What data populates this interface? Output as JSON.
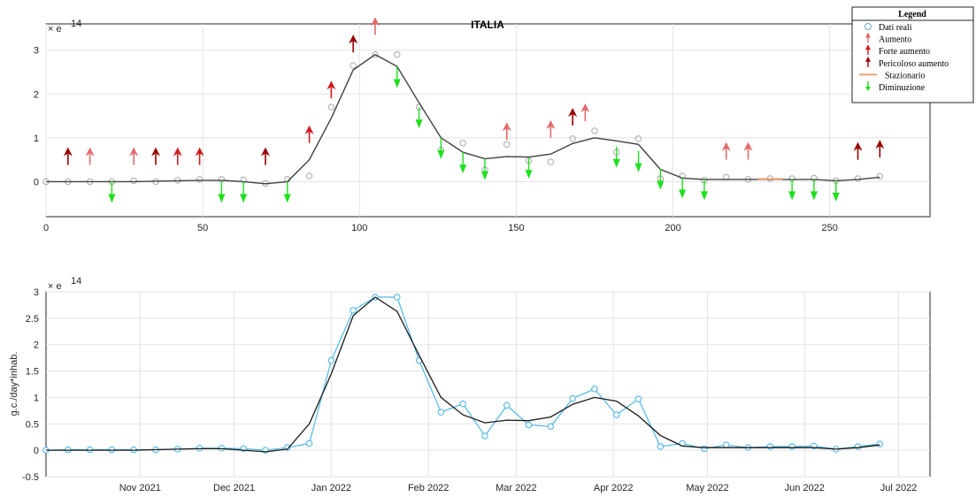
{
  "chart_data": [
    {
      "type": "line",
      "title": "ITALIA",
      "exponent_label": "×  e",
      "exponent_power": "14",
      "xlim": [
        0,
        282
      ],
      "ylim": [
        -0.8,
        3.6
      ],
      "xticks": [
        0,
        50,
        100,
        150,
        200,
        250
      ],
      "yticks": [
        0,
        1,
        2,
        3
      ],
      "grid": true,
      "legend": {
        "title": "Legend",
        "position": "top-right",
        "entries": [
          {
            "key": "real",
            "label": "Dati reali"
          },
          {
            "key": "up",
            "label": "Aumento"
          },
          {
            "key": "strong",
            "label": "Forte aumento"
          },
          {
            "key": "danger",
            "label": "Pericoloso aumento"
          },
          {
            "key": "stat",
            "label": "Stazionario"
          },
          {
            "key": "down",
            "label": "Diminuzione"
          }
        ]
      },
      "colors": {
        "real": "#a8a8a8",
        "trend": "#404040",
        "up": "#e46a6a",
        "strong": "#cf1d1d",
        "danger": "#980000",
        "stat": "#f0a070",
        "down": "#1ee01e"
      },
      "series": [
        {
          "name": "Dati reali",
          "x": [
            0,
            7,
            14,
            21,
            28,
            35,
            42,
            49,
            56,
            63,
            70,
            77,
            84,
            91,
            98,
            105,
            112,
            119,
            126,
            133,
            140,
            147,
            154,
            161,
            168,
            175,
            182,
            189,
            196,
            203,
            210,
            217,
            224,
            231,
            238,
            245,
            252,
            259,
            266
          ],
          "y": [
            0,
            0,
            0,
            0,
            0.02,
            0,
            0.03,
            0.05,
            0.05,
            0.04,
            -0.04,
            0.05,
            0.13,
            1.7,
            2.65,
            2.9,
            2.9,
            1.7,
            0.72,
            0.88,
            0.27,
            0.85,
            0.48,
            0.45,
            0.98,
            1.16,
            0.67,
            0.98,
            0.07,
            0.13,
            0.03,
            0.1,
            0.05,
            0.07,
            0.07,
            0.08,
            0.02,
            0.07,
            0.12
          ]
        },
        {
          "name": "",
          "x": [
            0,
            7,
            14,
            21,
            28,
            35,
            42,
            49,
            56,
            63,
            70,
            77,
            84,
            91,
            98,
            105,
            112,
            119,
            126,
            133,
            140,
            147,
            154,
            161,
            168,
            175,
            182,
            189,
            196,
            203,
            210,
            217,
            224,
            231,
            238,
            245,
            252,
            259,
            266
          ],
          "y": [
            0,
            0,
            0,
            0,
            0,
            0.01,
            0.02,
            0.03,
            0.03,
            0,
            -0.05,
            0,
            0.5,
            1.45,
            2.55,
            2.9,
            2.63,
            1.8,
            1.0,
            0.67,
            0.52,
            0.57,
            0.56,
            0.63,
            0.87,
            1.0,
            0.93,
            0.85,
            0.28,
            0.08,
            0.05,
            0.05,
            0.05,
            0.05,
            0.05,
            0.05,
            0.02,
            0.05,
            0.1
          ]
        }
      ],
      "markers": [
        {
          "x": 7,
          "y": 0.38,
          "kind": "danger"
        },
        {
          "x": 14,
          "y": 0.38,
          "kind": "up"
        },
        {
          "x": 21,
          "y": 0,
          "kind": "down"
        },
        {
          "x": 28,
          "y": 0.38,
          "kind": "up"
        },
        {
          "x": 35,
          "y": 0.38,
          "kind": "danger"
        },
        {
          "x": 42,
          "y": 0.38,
          "kind": "strong"
        },
        {
          "x": 49,
          "y": 0.38,
          "kind": "strong"
        },
        {
          "x": 56,
          "y": 0,
          "kind": "down"
        },
        {
          "x": 63,
          "y": 0,
          "kind": "down"
        },
        {
          "x": 70,
          "y": 0.38,
          "kind": "danger"
        },
        {
          "x": 77,
          "y": 0,
          "kind": "down"
        },
        {
          "x": 84,
          "y": 0.88,
          "kind": "strong"
        },
        {
          "x": 91,
          "y": 1.9,
          "kind": "strong"
        },
        {
          "x": 98,
          "y": 2.95,
          "kind": "danger"
        },
        {
          "x": 105,
          "y": 3.35,
          "kind": "up"
        },
        {
          "x": 112,
          "y": 2.62,
          "kind": "down"
        },
        {
          "x": 119,
          "y": 1.7,
          "kind": "down"
        },
        {
          "x": 126,
          "y": 1.0,
          "kind": "down"
        },
        {
          "x": 133,
          "y": 0.67,
          "kind": "down"
        },
        {
          "x": 140,
          "y": 0.52,
          "kind": "down"
        },
        {
          "x": 147,
          "y": 0.95,
          "kind": "up"
        },
        {
          "x": 154,
          "y": 0.55,
          "kind": "down"
        },
        {
          "x": 161,
          "y": 1.0,
          "kind": "up"
        },
        {
          "x": 168,
          "y": 1.28,
          "kind": "danger"
        },
        {
          "x": 172,
          "y": 1.38,
          "kind": "up"
        },
        {
          "x": 182,
          "y": 0.8,
          "kind": "down"
        },
        {
          "x": 189,
          "y": 0.7,
          "kind": "down"
        },
        {
          "x": 196,
          "y": 0.3,
          "kind": "down"
        },
        {
          "x": 203,
          "y": 0.1,
          "kind": "down"
        },
        {
          "x": 210,
          "y": 0.06,
          "kind": "down"
        },
        {
          "x": 217,
          "y": 0.5,
          "kind": "up"
        },
        {
          "x": 224,
          "y": 0.5,
          "kind": "up"
        },
        {
          "x": 231,
          "y": 0.06,
          "kind": "stat"
        },
        {
          "x": 238,
          "y": 0.06,
          "kind": "down"
        },
        {
          "x": 245,
          "y": 0.06,
          "kind": "down"
        },
        {
          "x": 252,
          "y": 0.03,
          "kind": "down"
        },
        {
          "x": 259,
          "y": 0.5,
          "kind": "danger"
        },
        {
          "x": 266,
          "y": 0.55,
          "kind": "danger"
        }
      ]
    },
    {
      "type": "line",
      "title": "",
      "exponent_label": "×  e",
      "exponent_power": "14",
      "ylabel": "g.c./day*inhab.",
      "xlim": [
        0,
        282
      ],
      "ylim": [
        -0.5,
        3.0
      ],
      "yticks": [
        -0.5,
        0,
        0.5,
        1,
        1.5,
        2,
        2.5,
        3
      ],
      "ytick_labels": [
        "-0.5",
        "0",
        "0.5",
        "1",
        "1.5",
        "2",
        "2.5",
        "3"
      ],
      "xticks": [
        30,
        60,
        91,
        122,
        150,
        181,
        211,
        242,
        272
      ],
      "xtick_labels": [
        "Nov 2021",
        "Dec 2021",
        "Jan 2022",
        "Feb 2022",
        "Mar 2022",
        "Apr 2022",
        "May 2022",
        "Jun 2022",
        "Jul 2022"
      ],
      "grid": true,
      "colors": {
        "real": "#4fb8e6",
        "trend": "#1a1a1a"
      },
      "series": [
        {
          "name": "",
          "x": [
            0,
            7,
            14,
            21,
            28,
            35,
            42,
            49,
            56,
            63,
            70,
            77,
            84,
            91,
            98,
            105,
            112,
            119,
            126,
            133,
            140,
            147,
            154,
            161,
            168,
            175,
            182,
            189,
            196,
            203,
            210,
            217,
            224,
            231,
            238,
            245,
            252,
            259,
            266
          ],
          "y": [
            0,
            0.01,
            0.01,
            0.01,
            0.01,
            0.01,
            0.02,
            0.04,
            0.04,
            0.03,
            0,
            0.05,
            0.13,
            1.7,
            2.65,
            2.9,
            2.9,
            1.7,
            0.72,
            0.88,
            0.27,
            0.85,
            0.48,
            0.45,
            0.98,
            1.16,
            0.67,
            0.97,
            0.07,
            0.13,
            0.03,
            0.1,
            0.05,
            0.07,
            0.07,
            0.08,
            0.02,
            0.07,
            0.12
          ]
        },
        {
          "name": "",
          "x": [
            0,
            7,
            14,
            21,
            28,
            35,
            42,
            49,
            56,
            63,
            70,
            77,
            84,
            91,
            98,
            105,
            112,
            119,
            126,
            133,
            140,
            147,
            154,
            161,
            168,
            175,
            182,
            189,
            196,
            203,
            210,
            217,
            224,
            231,
            238,
            245,
            252,
            259,
            266
          ],
          "y": [
            0,
            0,
            0,
            0,
            0,
            0.01,
            0.02,
            0.03,
            0.03,
            0,
            -0.03,
            0.02,
            0.5,
            1.45,
            2.55,
            2.9,
            2.63,
            1.8,
            1.0,
            0.67,
            0.52,
            0.57,
            0.56,
            0.63,
            0.87,
            1.0,
            0.93,
            0.65,
            0.28,
            0.08,
            0.05,
            0.05,
            0.05,
            0.05,
            0.05,
            0.05,
            0.02,
            0.05,
            0.1
          ]
        }
      ]
    }
  ]
}
